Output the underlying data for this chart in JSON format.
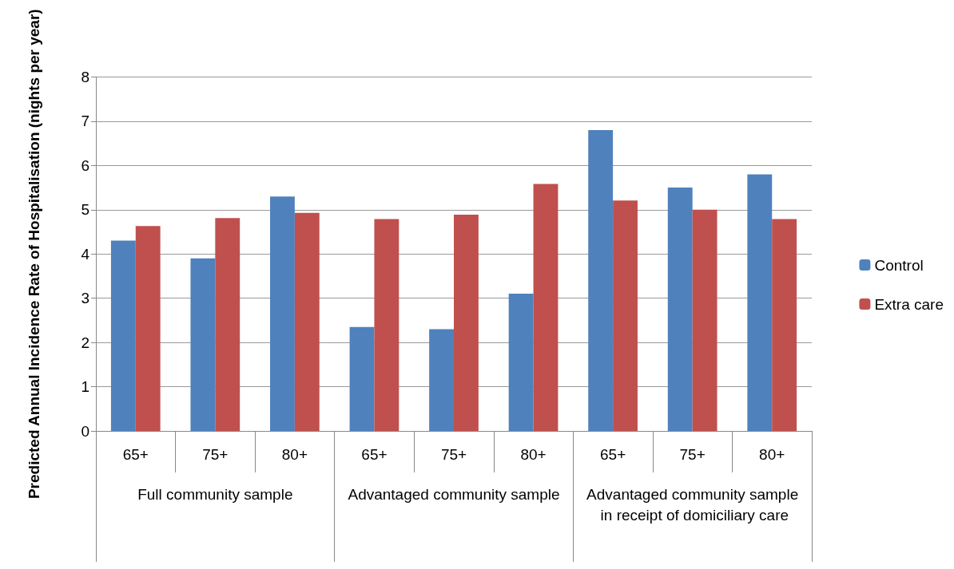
{
  "chart_data": {
    "type": "bar",
    "ylabel": "Predicted Annual Incidence Rate of Hospitalisation (nights per year)",
    "categories": [
      "65+",
      "75+",
      "80+",
      "65+",
      "75+",
      "80+",
      "65+",
      "75+",
      "80+"
    ],
    "annotations": [
      "Full community sample",
      "Advantaged community sample",
      "Advantaged community sample in receipt of domiciliary care"
    ],
    "series": [
      {
        "name": "Control",
        "color": "#4f81bd",
        "values": [
          4.3,
          3.9,
          5.3,
          2.35,
          2.3,
          3.1,
          6.8,
          5.5,
          5.8
        ]
      },
      {
        "name": "Extra care",
        "color": "#c0504d",
        "values": [
          4.63,
          4.81,
          4.93,
          4.79,
          4.89,
          5.58,
          5.21,
          5.0,
          4.79
        ]
      }
    ],
    "ylim": [
      0,
      8
    ],
    "yticks": [
      0,
      1,
      2,
      3,
      4,
      5,
      6,
      7,
      8
    ],
    "grid": "y",
    "legend": "right"
  }
}
